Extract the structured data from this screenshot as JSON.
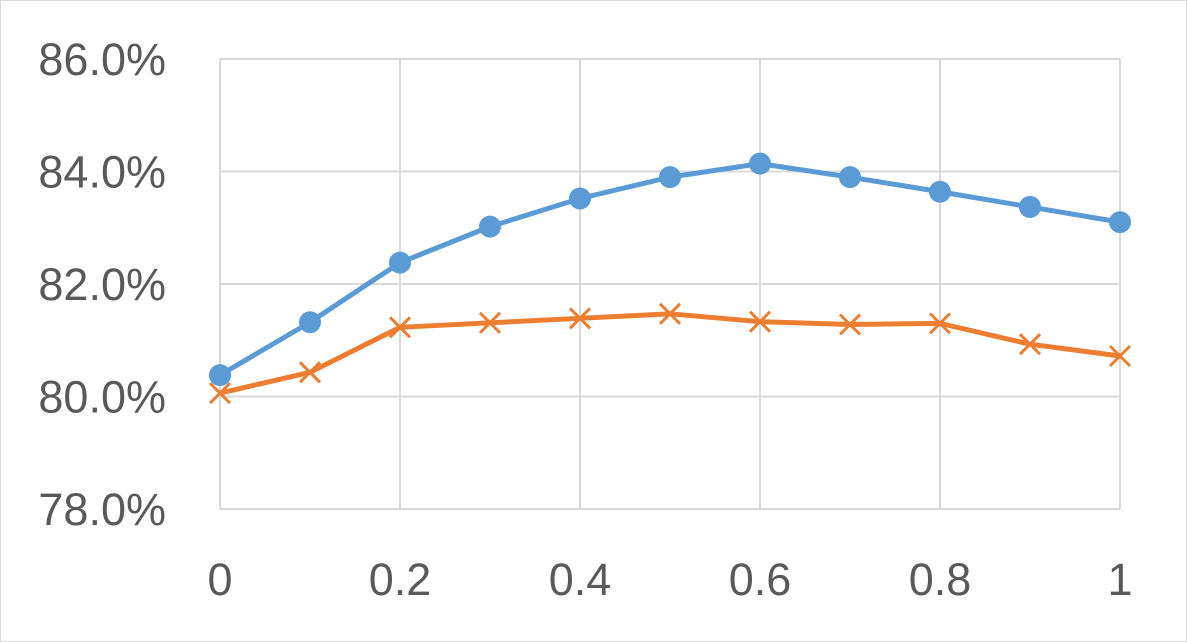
{
  "chart_data": {
    "type": "line",
    "title": "",
    "xlabel": "",
    "ylabel": "",
    "x": [
      0,
      0.1,
      0.2,
      0.3,
      0.4,
      0.5,
      0.6,
      0.7,
      0.8,
      0.9,
      1
    ],
    "xlim": [
      0,
      1
    ],
    "ylim": [
      0.78,
      0.86
    ],
    "x_tick_labels": [
      {
        "value": 0,
        "label": "0"
      },
      {
        "value": 0.2,
        "label": "0.2"
      },
      {
        "value": 0.4,
        "label": "0.4"
      },
      {
        "value": 0.6,
        "label": "0.6"
      },
      {
        "value": 0.8,
        "label": "0.8"
      },
      {
        "value": 1,
        "label": "1"
      }
    ],
    "y_tick_labels": [
      {
        "value": 0.78,
        "label": "78.0%"
      },
      {
        "value": 0.8,
        "label": "80.0%"
      },
      {
        "value": 0.82,
        "label": "82.0%"
      },
      {
        "value": 0.84,
        "label": "84.0%"
      },
      {
        "value": 0.86,
        "label": "86.0%"
      }
    ],
    "x_gridlines": [
      0,
      0.2,
      0.4,
      0.6,
      0.8,
      1
    ],
    "grid": true,
    "legend": "none",
    "series": [
      {
        "color": "#5b9bd5",
        "marker": "circle",
        "values": [
          0.8038,
          0.8132,
          0.8238,
          0.8302,
          0.8352,
          0.839,
          0.8414,
          0.839,
          0.8364,
          0.8337,
          0.831
        ]
      },
      {
        "color": "#ed7d31",
        "marker": "x",
        "values": [
          0.8006,
          0.8043,
          0.8123,
          0.8131,
          0.8139,
          0.8147,
          0.8133,
          0.8128,
          0.813,
          0.8093,
          0.8072
        ]
      }
    ]
  }
}
